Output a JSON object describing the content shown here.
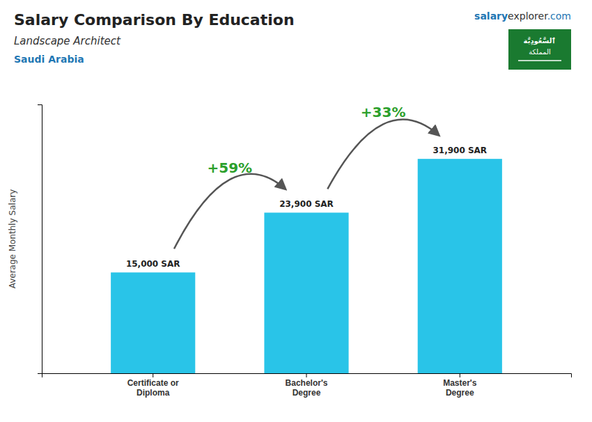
{
  "chart_data": {
    "type": "bar",
    "title": "Salary Comparison By Education",
    "subtitle": "Landscape Architect",
    "ylabel": "Average Monthly Salary",
    "categories": [
      "Certificate or\nDiploma",
      "Bachelor's\nDegree",
      "Master's\nDegree"
    ],
    "values": [
      15000,
      23900,
      31900
    ],
    "value_labels": [
      "15,000 SAR",
      "23,900 SAR",
      "31,900 SAR"
    ],
    "data_labels": true,
    "color": "#29C4E8",
    "ylim": [
      0,
      40000
    ],
    "grid": false,
    "tick_labels": "x",
    "annotations": [
      "+59%",
      "+33%",
      "Saudi Arabia",
      "salary",
      "explorer",
      ".com",
      "ٱلسَّعُودِيَّة",
      "المملكة"
    ]
  }
}
